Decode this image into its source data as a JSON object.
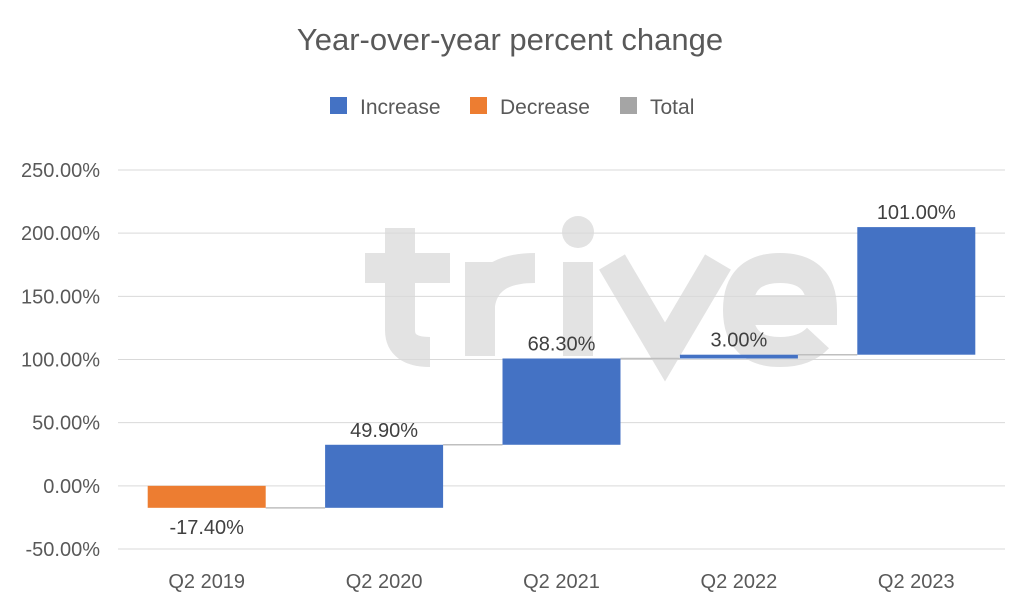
{
  "chart_data": {
    "type": "waterfall",
    "title": "Year-over-year percent change",
    "categories": [
      "Q2 2019",
      "Q2 2020",
      "Q2 2021",
      "Q2 2022",
      "Q2 2023"
    ],
    "values": [
      -17.4,
      49.9,
      68.3,
      3.0,
      101.0
    ],
    "data_labels": [
      "-17.40%",
      "49.90%",
      "68.30%",
      "3.00%",
      "101.00%"
    ],
    "legend": [
      {
        "name": "Increase",
        "color": "#4472C4"
      },
      {
        "name": "Decrease",
        "color": "#ED7D31"
      },
      {
        "name": "Total",
        "color": "#A5A5A5"
      }
    ],
    "legend_position": "top",
    "ylim": [
      -50,
      250
    ],
    "yticks": [
      -50,
      0,
      50,
      100,
      150,
      200,
      250
    ],
    "ytick_labels": [
      "-50.00%",
      "0.00%",
      "50.00%",
      "100.00%",
      "150.00%",
      "200.00%",
      "250.00%"
    ],
    "grid": true,
    "xlabel": "",
    "ylabel": ""
  },
  "watermark": "trive"
}
